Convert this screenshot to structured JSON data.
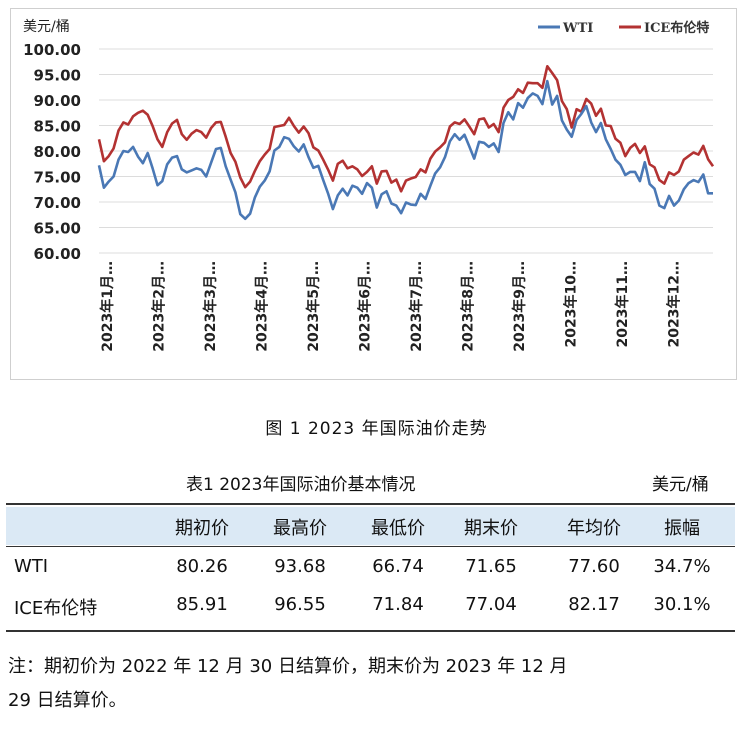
{
  "chart_data": {
    "type": "line",
    "ylabel": "美元/桶",
    "ylim": [
      60,
      100
    ],
    "yticks": [
      "60.00",
      "65.00",
      "70.00",
      "75.00",
      "80.00",
      "85.00",
      "90.00",
      "95.00",
      "100.00"
    ],
    "x_ticks": [
      "2023年1月…",
      "2023年2月…",
      "2023年3月…",
      "2023年4月…",
      "2023年5月…",
      "2023年6月…",
      "2023年7月…",
      "2023年8月…",
      "2023年9月…",
      "2023年10…",
      "2023年11…",
      "2023年12…"
    ],
    "legend_position": "top-right",
    "grid": true,
    "series": [
      {
        "name": "WTI",
        "color": "#4a78b5",
        "values": [
          77.2,
          72.8,
          74.0,
          75.0,
          78.3,
          80.0,
          79.8,
          80.8,
          78.9,
          77.6,
          79.6,
          76.6,
          73.3,
          74.1,
          77.4,
          78.7,
          79.0,
          76.4,
          75.8,
          76.2,
          76.6,
          76.3,
          75.0,
          77.7,
          80.4,
          80.6,
          77.0,
          74.4,
          71.9,
          67.6,
          66.7,
          67.7,
          70.9,
          73.0,
          74.2,
          76.0,
          80.1,
          80.8,
          82.7,
          82.4,
          80.9,
          79.9,
          81.3,
          78.8,
          76.7,
          77.1,
          74.3,
          71.7,
          68.6,
          71.3,
          72.6,
          71.3,
          73.2,
          72.8,
          71.6,
          73.7,
          72.8,
          68.9,
          71.5,
          72.1,
          69.7,
          69.3,
          67.8,
          69.9,
          69.5,
          69.4,
          71.6,
          70.6,
          73.2,
          75.6,
          76.8,
          78.8,
          81.9,
          83.3,
          82.2,
          83.2,
          80.9,
          78.5,
          81.8,
          81.6,
          80.8,
          81.5,
          79.8,
          85.5,
          87.6,
          86.2,
          89.4,
          88.5,
          90.4,
          91.3,
          90.8,
          89.2,
          93.7,
          89.1,
          90.8,
          86.0,
          84.2,
          82.8,
          86.1,
          87.3,
          88.8,
          85.6,
          83.7,
          85.5,
          82.3,
          80.4,
          78.3,
          77.3,
          75.3,
          75.9,
          75.9,
          74.1,
          77.8,
          73.5,
          72.6,
          69.3,
          68.8,
          71.2,
          69.3,
          70.3,
          72.5,
          73.7,
          74.3,
          73.9,
          75.4,
          71.7,
          71.7
        ]
      },
      {
        "name": "ICE布伦特",
        "color": "#b33232",
        "values": [
          82.3,
          78.0,
          79.0,
          80.5,
          84.0,
          85.6,
          85.2,
          86.8,
          87.5,
          87.9,
          87.1,
          84.9,
          82.3,
          80.8,
          83.7,
          85.4,
          86.1,
          83.3,
          82.2,
          83.4,
          84.1,
          83.7,
          82.6,
          84.5,
          85.6,
          85.7,
          82.8,
          79.6,
          77.9,
          74.8,
          72.9,
          74.0,
          76.1,
          78.0,
          79.3,
          80.4,
          84.7,
          84.9,
          85.1,
          86.5,
          84.9,
          83.6,
          84.8,
          83.5,
          80.7,
          80.1,
          78.3,
          76.4,
          74.2,
          77.5,
          78.1,
          76.6,
          77.0,
          76.4,
          75.1,
          75.9,
          77.0,
          73.6,
          76.0,
          76.1,
          73.8,
          74.4,
          72.1,
          74.2,
          74.6,
          74.9,
          76.4,
          75.8,
          78.5,
          79.9,
          80.7,
          81.7,
          84.8,
          85.6,
          85.3,
          86.2,
          84.8,
          83.3,
          86.2,
          86.4,
          84.6,
          85.3,
          83.7,
          88.5,
          90.0,
          90.6,
          92.1,
          91.4,
          93.4,
          93.3,
          93.3,
          92.4,
          96.6,
          95.3,
          93.9,
          89.8,
          88.2,
          84.6,
          88.2,
          87.7,
          90.2,
          89.3,
          86.9,
          88.3,
          85.0,
          84.9,
          82.4,
          81.6,
          79.0,
          80.6,
          81.4,
          79.6,
          80.9,
          77.4,
          76.8,
          74.3,
          73.6,
          75.8,
          75.3,
          76.0,
          78.3,
          79.0,
          79.7,
          79.3,
          81.0,
          78.4,
          77.0
        ]
      }
    ]
  },
  "figure_caption": "图 1  2023 年国际油价走势",
  "table": {
    "title": "表1  2023年国际油价基本情况",
    "unit": "美元/桶",
    "headers": [
      "期初价",
      "最高价",
      "最低价",
      "期末价",
      "年均价",
      "振幅"
    ],
    "rows": [
      {
        "name": "WTI",
        "values": [
          "80.26",
          "93.68",
          "66.74",
          "71.65",
          "77.60",
          "34.7%"
        ]
      },
      {
        "name": "ICE布伦特",
        "values": [
          "85.91",
          "96.55",
          "71.84",
          "77.04",
          "82.17",
          "30.1%"
        ]
      }
    ]
  },
  "note": {
    "line1": "注：期初价为 2022 年 12 月 30 日结算价，期末价为 2023 年 12 月",
    "line2": "29 日结算价。"
  }
}
